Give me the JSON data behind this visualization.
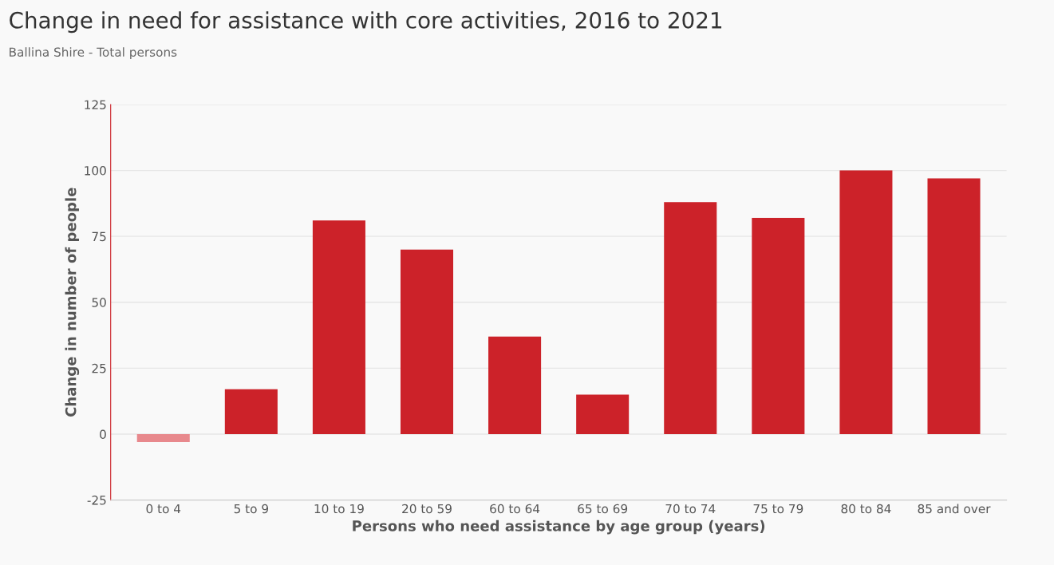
{
  "chart_data": {
    "type": "bar",
    "title": "Change in need for assistance with core activities, 2016 to 2021",
    "subtitle": "Ballina Shire - Total persons",
    "xlabel": "Persons who need assistance by age group (years)",
    "ylabel": "Change in number of people",
    "categories": [
      "0 to 4",
      "5 to 9",
      "10 to 19",
      "20 to 59",
      "60 to 64",
      "65 to 69",
      "70 to 74",
      "75 to 79",
      "80 to 84",
      "85 and over"
    ],
    "values": [
      -3,
      17,
      81,
      70,
      37,
      15,
      88,
      82,
      100,
      97
    ],
    "colors": [
      "#e8898d",
      "#cc2229",
      "#cc2229",
      "#cc2229",
      "#cc2229",
      "#cc2229",
      "#cc2229",
      "#cc2229",
      "#cc2229",
      "#cc2229"
    ],
    "ylim": [
      -25,
      125
    ],
    "yticks": [
      -25,
      0,
      25,
      50,
      75,
      100,
      125
    ],
    "grid": "y"
  }
}
